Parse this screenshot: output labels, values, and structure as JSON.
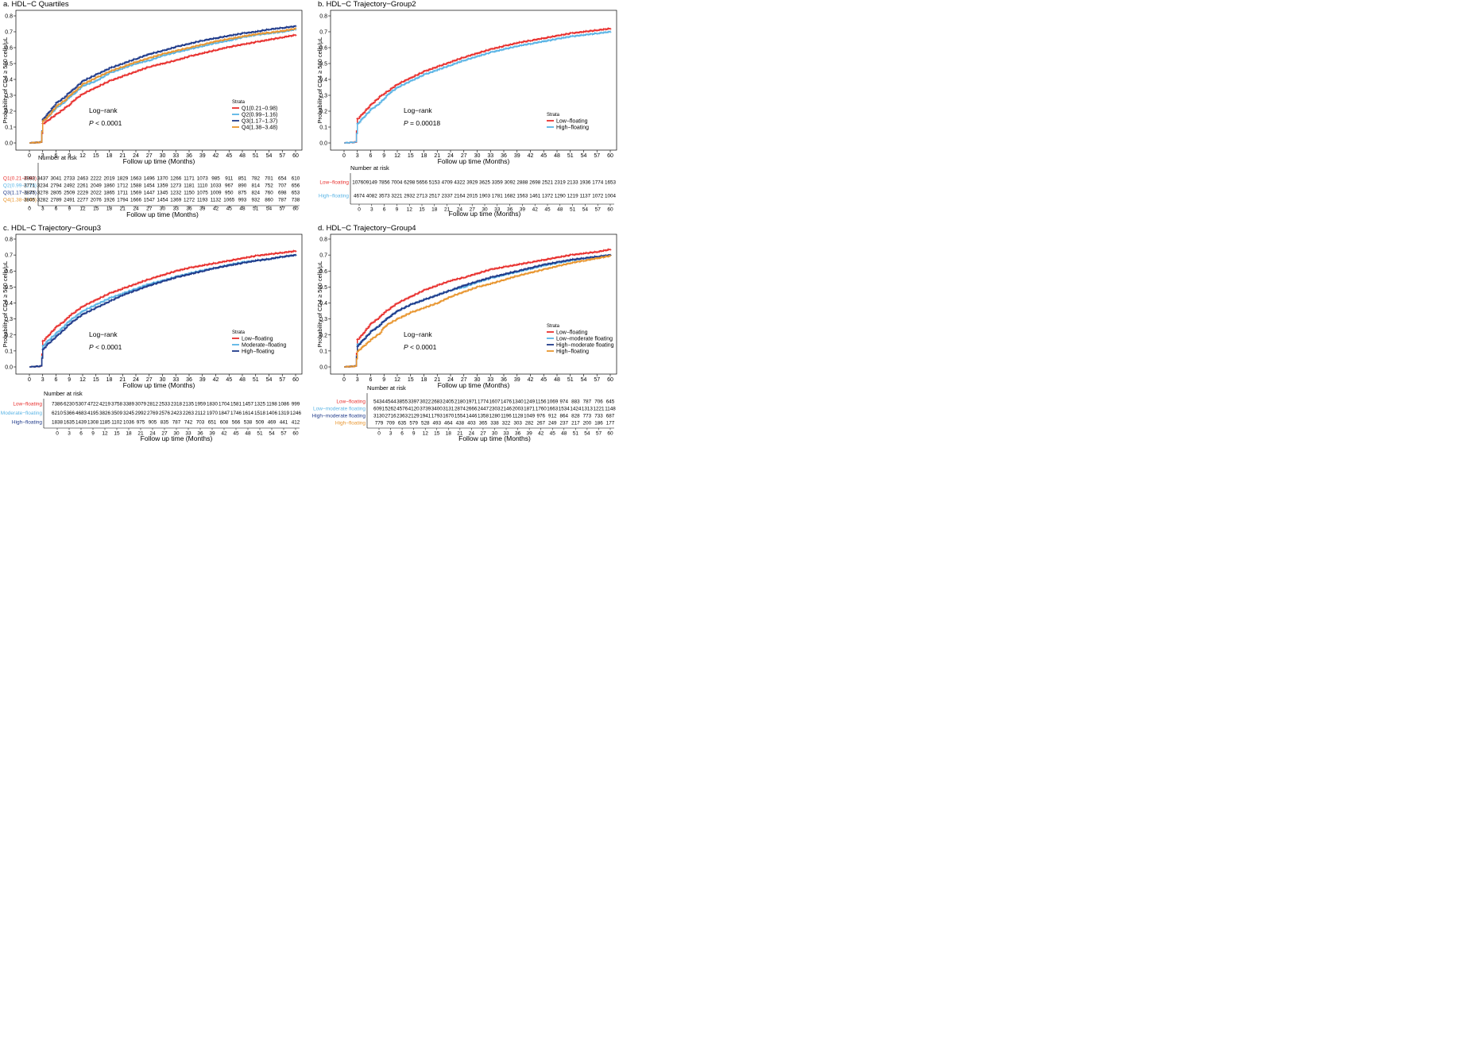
{
  "chart_data": [
    {
      "panel": "a",
      "type": "line",
      "title": "a.  HDL−C Quartiles",
      "ylabel": "Probability of CD4 ≥ 500 cells/μL",
      "xlabel": "Follow up time (Months)",
      "xlim": [
        0,
        60
      ],
      "ylim": [
        0,
        0.8
      ],
      "xticks": [
        "0",
        "3",
        "6",
        "9",
        "12",
        "15",
        "18",
        "21",
        "24",
        "27",
        "30",
        "33",
        "36",
        "39",
        "42",
        "45",
        "48",
        "51",
        "54",
        "57",
        "60"
      ],
      "yticks": [
        "0.0",
        "0.1",
        "0.2",
        "0.3",
        "0.4",
        "0.5",
        "0.6",
        "0.7",
        "0.8"
      ],
      "annotation_title": "Log−rank",
      "p_label": "P",
      "p_value": "< 0.0001",
      "legend_title": "Strata",
      "legend_position": "bottom-right",
      "risk_title": "Number at risk",
      "risk_xlabel": "Follow up time (Months)",
      "x": [
        0,
        2.6,
        3,
        4,
        6,
        8,
        9,
        10,
        12,
        15,
        18,
        21,
        24,
        27,
        30,
        33,
        36,
        39,
        42,
        45,
        48,
        51,
        54,
        57,
        60
      ],
      "series": [
        {
          "name": "Q1(0.21−0.98)",
          "color": "#e8302e",
          "values": [
            0,
            0.005,
            0.12,
            0.14,
            0.18,
            0.22,
            0.24,
            0.27,
            0.31,
            0.35,
            0.39,
            0.42,
            0.45,
            0.48,
            0.5,
            0.52,
            0.545,
            0.565,
            0.585,
            0.605,
            0.62,
            0.635,
            0.65,
            0.665,
            0.68
          ],
          "risk": [
            "3983",
            "3437",
            "3041",
            "2733",
            "2463",
            "2222",
            "2019",
            "1829",
            "1663",
            "1496",
            "1370",
            "1266",
            "1171",
            "1073",
            "985",
            "911",
            "851",
            "782",
            "701",
            "654",
            "610"
          ]
        },
        {
          "name": "Q2(0.99−1.16)",
          "color": "#5ab4e5",
          "values": [
            0,
            0.005,
            0.14,
            0.16,
            0.22,
            0.26,
            0.29,
            0.31,
            0.36,
            0.39,
            0.44,
            0.47,
            0.5,
            0.52,
            0.55,
            0.57,
            0.59,
            0.61,
            0.63,
            0.645,
            0.665,
            0.68,
            0.69,
            0.7,
            0.715
          ],
          "risk": [
            "3771",
            "3234",
            "2794",
            "2492",
            "2261",
            "2049",
            "1860",
            "1712",
            "1588",
            "1454",
            "1359",
            "1273",
            "1181",
            "1110",
            "1033",
            "967",
            "890",
            "814",
            "752",
            "707",
            "656"
          ]
        },
        {
          "name": "Q3(1.17−1.37)",
          "color": "#1f3a8a",
          "values": [
            0,
            0.005,
            0.15,
            0.18,
            0.25,
            0.29,
            0.32,
            0.34,
            0.39,
            0.43,
            0.47,
            0.5,
            0.53,
            0.56,
            0.58,
            0.605,
            0.625,
            0.645,
            0.66,
            0.675,
            0.69,
            0.7,
            0.715,
            0.725,
            0.735
          ],
          "risk": [
            "3875",
            "3278",
            "2805",
            "2509",
            "2229",
            "2022",
            "1865",
            "1711",
            "1569",
            "1447",
            "1345",
            "1232",
            "1150",
            "1075",
            "1009",
            "950",
            "875",
            "824",
            "760",
            "698",
            "653"
          ]
        },
        {
          "name": "Q4(1.38−3.48)",
          "color": "#e8952e",
          "values": [
            0,
            0.005,
            0.14,
            0.16,
            0.23,
            0.27,
            0.3,
            0.32,
            0.37,
            0.41,
            0.45,
            0.48,
            0.51,
            0.535,
            0.56,
            0.58,
            0.6,
            0.62,
            0.64,
            0.655,
            0.67,
            0.685,
            0.695,
            0.705,
            0.72
          ],
          "risk": [
            "3805",
            "3282",
            "2789",
            "2491",
            "2277",
            "2076",
            "1926",
            "1794",
            "1666",
            "1547",
            "1454",
            "1369",
            "1272",
            "1193",
            "1132",
            "1065",
            "993",
            "932",
            "860",
            "787",
            "738"
          ]
        }
      ]
    },
    {
      "panel": "b",
      "type": "line",
      "title": "b.  HDL−C Trajectory−Group2",
      "ylabel": "Probability of CD4 ≥ 500 cells/μL",
      "xlabel": "Follow up time (Months)",
      "xlim": [
        0,
        60
      ],
      "ylim": [
        0,
        0.8
      ],
      "xticks": [
        "0",
        "3",
        "6",
        "9",
        "12",
        "15",
        "18",
        "21",
        "24",
        "27",
        "30",
        "33",
        "36",
        "39",
        "42",
        "45",
        "48",
        "51",
        "54",
        "57",
        "60"
      ],
      "yticks": [
        "0.0",
        "0.1",
        "0.2",
        "0.3",
        "0.4",
        "0.5",
        "0.6",
        "0.7",
        "0.8"
      ],
      "annotation_title": "Log−rank",
      "p_label": "P",
      "p_value": "= 0.00018",
      "legend_title": "Strata",
      "legend_position": "bottom-right",
      "risk_title": "Number at risk",
      "risk_xlabel": "Follow up time (Months)",
      "x": [
        0,
        2.6,
        3,
        4,
        6,
        8,
        9,
        10,
        12,
        15,
        18,
        21,
        24,
        27,
        30,
        33,
        36,
        39,
        42,
        45,
        48,
        51,
        54,
        57,
        60
      ],
      "series": [
        {
          "name": "Low−floating",
          "color": "#e8302e",
          "values": [
            0,
            0.005,
            0.15,
            0.18,
            0.24,
            0.29,
            0.31,
            0.33,
            0.37,
            0.41,
            0.45,
            0.48,
            0.51,
            0.54,
            0.565,
            0.59,
            0.61,
            0.63,
            0.645,
            0.66,
            0.675,
            0.69,
            0.7,
            0.71,
            0.72
          ],
          "risk": [
            "10760",
            "9149",
            "7856",
            "7004",
            "6298",
            "5656",
            "5153",
            "4709",
            "4322",
            "3929",
            "3625",
            "3359",
            "3092",
            "2888",
            "2698",
            "2521",
            "2319",
            "2133",
            "1936",
            "1774",
            "1653"
          ]
        },
        {
          "name": "High−floating",
          "color": "#5ab4e5",
          "values": [
            0,
            0.005,
            0.12,
            0.15,
            0.21,
            0.25,
            0.28,
            0.31,
            0.35,
            0.39,
            0.43,
            0.46,
            0.49,
            0.52,
            0.545,
            0.57,
            0.59,
            0.61,
            0.625,
            0.64,
            0.655,
            0.67,
            0.68,
            0.69,
            0.7
          ],
          "risk": [
            "4674",
            "4082",
            "3573",
            "3221",
            "2932",
            "2713",
            "2517",
            "2337",
            "2164",
            "2015",
            "1903",
            "1781",
            "1682",
            "1563",
            "1461",
            "1372",
            "1290",
            "1219",
            "1137",
            "1072",
            "1004"
          ]
        }
      ]
    },
    {
      "panel": "c",
      "type": "line",
      "title": "c.  HDL−C Trajectory−Group3",
      "ylabel": "Probability of CD4 ≥ 500 cells/μL",
      "xlabel": "Follow up time (Months)",
      "xlim": [
        0,
        60
      ],
      "ylim": [
        0,
        0.8
      ],
      "xticks": [
        "0",
        "3",
        "6",
        "9",
        "12",
        "15",
        "18",
        "21",
        "24",
        "27",
        "30",
        "33",
        "36",
        "39",
        "42",
        "45",
        "48",
        "51",
        "54",
        "57",
        "60"
      ],
      "yticks": [
        "0.0",
        "0.1",
        "0.2",
        "0.3",
        "0.4",
        "0.5",
        "0.6",
        "0.7",
        "0.8"
      ],
      "annotation_title": "Log−rank",
      "p_label": "P",
      "p_value": "< 0.0001",
      "legend_title": "Strata",
      "legend_position": "bottom-right",
      "risk_title": "Number at risk",
      "risk_xlabel": "Follow up time (Months)",
      "x": [
        0,
        2.6,
        3,
        4,
        6,
        8,
        9,
        10,
        12,
        15,
        18,
        21,
        24,
        27,
        30,
        33,
        36,
        39,
        42,
        45,
        48,
        51,
        54,
        57,
        60
      ],
      "series": [
        {
          "name": "Low−floating",
          "color": "#e8302e",
          "values": [
            0,
            0.005,
            0.16,
            0.19,
            0.25,
            0.29,
            0.32,
            0.34,
            0.38,
            0.42,
            0.46,
            0.49,
            0.52,
            0.55,
            0.575,
            0.6,
            0.62,
            0.635,
            0.65,
            0.665,
            0.68,
            0.695,
            0.705,
            0.715,
            0.725
          ],
          "risk": [
            "7386",
            "6230",
            "5307",
            "4722",
            "4219",
            "3758",
            "3389",
            "3079",
            "2812",
            "2533",
            "2318",
            "2135",
            "1959",
            "1830",
            "1704",
            "1581",
            "1457",
            "1325",
            "1198",
            "1086",
            "999"
          ]
        },
        {
          "name": "Moderate−floating",
          "color": "#5ab4e5",
          "values": [
            0,
            0.005,
            0.13,
            0.16,
            0.21,
            0.26,
            0.29,
            0.31,
            0.35,
            0.39,
            0.43,
            0.46,
            0.49,
            0.52,
            0.54,
            0.565,
            0.585,
            0.605,
            0.62,
            0.64,
            0.655,
            0.665,
            0.675,
            0.69,
            0.7
          ],
          "risk": [
            "6210",
            "5366",
            "4683",
            "4195",
            "3826",
            "3509",
            "3245",
            "2992",
            "2769",
            "2576",
            "2423",
            "2263",
            "2112",
            "1970",
            "1847",
            "1746",
            "1614",
            "1518",
            "1406",
            "1319",
            "1246"
          ]
        },
        {
          "name": "High−floating",
          "color": "#1f3a8a",
          "values": [
            0,
            0.005,
            0.11,
            0.14,
            0.19,
            0.24,
            0.27,
            0.29,
            0.33,
            0.37,
            0.41,
            0.45,
            0.48,
            0.51,
            0.535,
            0.56,
            0.58,
            0.6,
            0.62,
            0.635,
            0.65,
            0.665,
            0.675,
            0.69,
            0.7
          ],
          "risk": [
            "1838",
            "1635",
            "1439",
            "1308",
            "1185",
            "1102",
            "1036",
            "975",
            "905",
            "835",
            "787",
            "742",
            "703",
            "651",
            "608",
            "566",
            "538",
            "509",
            "469",
            "441",
            "412"
          ]
        }
      ]
    },
    {
      "panel": "d",
      "type": "line",
      "title": "d.  HDL−C Trajectory−Group4",
      "ylabel": "Probability of CD4 ≥ 500 cells/μL",
      "xlabel": "Follow up time (Months)",
      "xlim": [
        0,
        60
      ],
      "ylim": [
        0,
        0.8
      ],
      "xticks": [
        "0",
        "3",
        "6",
        "9",
        "12",
        "15",
        "18",
        "21",
        "24",
        "27",
        "30",
        "33",
        "36",
        "39",
        "42",
        "45",
        "48",
        "51",
        "54",
        "57",
        "60"
      ],
      "yticks": [
        "0.0",
        "0.1",
        "0.2",
        "0.3",
        "0.4",
        "0.5",
        "0.6",
        "0.7",
        "0.8"
      ],
      "annotation_title": "Log−rank",
      "p_label": "P",
      "p_value": "< 0.0001",
      "legend_title": "Strata",
      "legend_position": "bottom-right",
      "risk_title": "Number at risk",
      "risk_xlabel": "Follow up time (Months)",
      "x": [
        0,
        2.6,
        3,
        4,
        6,
        8,
        9,
        10,
        12,
        15,
        18,
        21,
        24,
        27,
        30,
        33,
        36,
        39,
        42,
        45,
        48,
        51,
        54,
        57,
        60
      ],
      "series": [
        {
          "name": "Low−floating",
          "color": "#e8302e",
          "values": [
            0,
            0.005,
            0.17,
            0.2,
            0.27,
            0.31,
            0.34,
            0.36,
            0.4,
            0.44,
            0.48,
            0.51,
            0.54,
            0.56,
            0.585,
            0.61,
            0.625,
            0.64,
            0.655,
            0.67,
            0.685,
            0.7,
            0.71,
            0.72,
            0.735
          ],
          "risk": [
            "5434",
            "4544",
            "3855",
            "3397",
            "3022",
            "2683",
            "2405",
            "2180",
            "1971",
            "1774",
            "1607",
            "1476",
            "1340",
            "1249",
            "1156",
            "1069",
            "974",
            "883",
            "787",
            "706",
            "645"
          ]
        },
        {
          "name": "Low−moderate floating",
          "color": "#5ab4e5",
          "values": [
            0,
            0.005,
            0.14,
            0.16,
            0.22,
            0.26,
            0.29,
            0.31,
            0.35,
            0.39,
            0.42,
            0.45,
            0.48,
            0.5,
            0.53,
            0.555,
            0.575,
            0.595,
            0.615,
            0.635,
            0.65,
            0.665,
            0.68,
            0.69,
            0.7
          ],
          "risk": [
            "6091",
            "5262",
            "4576",
            "4120",
            "3739",
            "3400",
            "3131",
            "2874",
            "2666",
            "2447",
            "2303",
            "2146",
            "2003",
            "1871",
            "1760",
            "1663",
            "1534",
            "1424",
            "1313",
            "1221",
            "1148"
          ]
        },
        {
          "name": "High−moderate floating",
          "color": "#1f3a8a",
          "values": [
            0,
            0.005,
            0.13,
            0.16,
            0.22,
            0.26,
            0.29,
            0.31,
            0.35,
            0.39,
            0.42,
            0.45,
            0.48,
            0.51,
            0.535,
            0.56,
            0.58,
            0.6,
            0.62,
            0.64,
            0.655,
            0.67,
            0.68,
            0.69,
            0.7
          ],
          "risk": [
            "3130",
            "2716",
            "2363",
            "2129",
            "1941",
            "1793",
            "1670",
            "1554",
            "1446",
            "1358",
            "1280",
            "1196",
            "1128",
            "1049",
            "976",
            "912",
            "864",
            "828",
            "773",
            "733",
            "687"
          ]
        },
        {
          "name": "High−floating",
          "color": "#e8952e",
          "values": [
            0,
            0.005,
            0.1,
            0.12,
            0.17,
            0.21,
            0.25,
            0.27,
            0.3,
            0.34,
            0.37,
            0.4,
            0.44,
            0.47,
            0.5,
            0.52,
            0.545,
            0.57,
            0.59,
            0.61,
            0.63,
            0.65,
            0.665,
            0.68,
            0.695
          ],
          "risk": [
            "779",
            "709",
            "635",
            "579",
            "528",
            "493",
            "464",
            "438",
            "403",
            "365",
            "338",
            "322",
            "303",
            "282",
            "267",
            "249",
            "237",
            "217",
            "200",
            "186",
            "177"
          ]
        }
      ]
    }
  ]
}
